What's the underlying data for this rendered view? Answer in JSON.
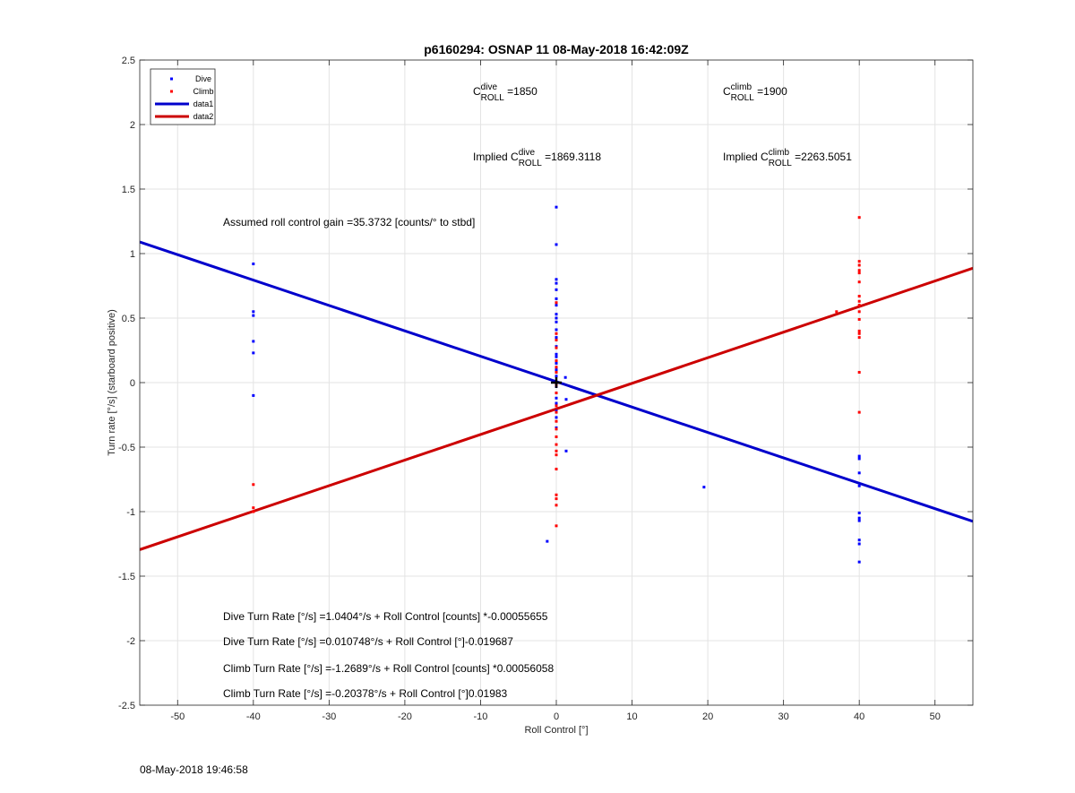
{
  "chart_data": {
    "type": "scatter",
    "title": "p6160294: OSNAP 11 08-May-2018 16:42:09Z",
    "xlabel": "Roll Control [°]",
    "ylabel": "Turn rate [°/s] (starboard positive)",
    "xlim": [
      -55,
      55
    ],
    "ylim": [
      -2.5,
      2.5
    ],
    "xticks": [
      -50,
      -40,
      -30,
      -20,
      -10,
      0,
      10,
      20,
      30,
      40,
      50
    ],
    "yticks": [
      -2.5,
      -2,
      -1.5,
      -1,
      -0.5,
      0,
      0.5,
      1,
      1.5,
      2,
      2.5
    ],
    "grid": true,
    "legend_position": "top-left",
    "series": [
      {
        "name": "Dive",
        "kind": "points",
        "color": "#0000ff",
        "points": [
          [
            -40,
            0.92
          ],
          [
            -40,
            0.55
          ],
          [
            -40,
            0.52
          ],
          [
            -40,
            0.32
          ],
          [
            -40,
            0.23
          ],
          [
            -40,
            -0.1
          ],
          [
            0,
            1.36
          ],
          [
            0,
            1.07
          ],
          [
            0,
            0.8
          ],
          [
            0,
            0.77
          ],
          [
            0,
            0.72
          ],
          [
            0,
            0.65
          ],
          [
            0,
            0.6
          ],
          [
            0,
            0.53
          ],
          [
            0,
            0.5
          ],
          [
            0,
            0.47
          ],
          [
            0,
            0.41
          ],
          [
            0,
            0.35
          ],
          [
            0,
            0.28
          ],
          [
            0,
            0.22
          ],
          [
            0,
            0.2
          ],
          [
            0,
            0.15
          ],
          [
            0,
            0.1
          ],
          [
            0,
            0.05
          ],
          [
            0,
            0.0
          ],
          [
            0,
            -0.03
          ],
          [
            0,
            -0.08
          ],
          [
            0,
            -0.12
          ],
          [
            0,
            -0.16
          ],
          [
            0,
            -0.22
          ],
          [
            0,
            -0.27
          ],
          [
            0,
            -0.35
          ],
          [
            1.2,
            0.04
          ],
          [
            1.3,
            -0.13
          ],
          [
            1.3,
            -0.53
          ],
          [
            -1.2,
            -1.23
          ],
          [
            19.5,
            -0.81
          ],
          [
            40,
            -0.57
          ],
          [
            40,
            -0.59
          ],
          [
            40,
            -0.7
          ],
          [
            40,
            -0.8
          ],
          [
            40,
            -1.01
          ],
          [
            40,
            -1.05
          ],
          [
            40,
            -1.07
          ],
          [
            40,
            -1.22
          ],
          [
            40,
            -1.25
          ],
          [
            40,
            -1.39
          ]
        ]
      },
      {
        "name": "Climb",
        "kind": "points",
        "color": "#ff0000",
        "points": [
          [
            -40,
            -0.79
          ],
          [
            -40,
            -0.97
          ],
          [
            -40,
            -1.0
          ],
          [
            0,
            0.62
          ],
          [
            0,
            0.38
          ],
          [
            0,
            0.33
          ],
          [
            0,
            0.27
          ],
          [
            0,
            0.17
          ],
          [
            0,
            0.12
          ],
          [
            0,
            0.08
          ],
          [
            0,
            -0.02
          ],
          [
            0,
            -0.08
          ],
          [
            0,
            -0.18
          ],
          [
            0,
            -0.23
          ],
          [
            0,
            -0.3
          ],
          [
            0,
            -0.36
          ],
          [
            0,
            -0.42
          ],
          [
            0,
            -0.48
          ],
          [
            0,
            -0.53
          ],
          [
            0,
            -0.56
          ],
          [
            0,
            -0.67
          ],
          [
            0,
            -0.87
          ],
          [
            0,
            -0.9
          ],
          [
            0,
            -0.95
          ],
          [
            0,
            -1.11
          ],
          [
            37,
            0.55
          ],
          [
            40,
            1.28
          ],
          [
            40,
            0.94
          ],
          [
            40,
            0.91
          ],
          [
            40,
            0.87
          ],
          [
            40,
            0.85
          ],
          [
            40,
            0.78
          ],
          [
            40,
            0.67
          ],
          [
            40,
            0.63
          ],
          [
            40,
            0.6
          ],
          [
            40,
            0.55
          ],
          [
            40,
            0.49
          ],
          [
            40,
            0.4
          ],
          [
            40,
            0.38
          ],
          [
            40,
            0.35
          ],
          [
            40,
            0.08
          ],
          [
            40,
            -0.23
          ]
        ]
      },
      {
        "name": "data1",
        "kind": "line",
        "color": "#0000cc",
        "points": [
          [
            -55,
            1.0898
          ],
          [
            55,
            -1.0752
          ]
        ]
      },
      {
        "name": "data2",
        "kind": "line",
        "color": "#cc0000",
        "points": [
          [
            -55,
            -1.2944
          ],
          [
            55,
            0.8869
          ]
        ]
      }
    ],
    "origin_marker": [
      0,
      0
    ],
    "annotations": {
      "c_dive_base": "C",
      "c_dive_sup": "dive",
      "c_dive_sub": "ROLL",
      "c_dive_val": " =1850",
      "c_climb_base": "C",
      "c_climb_sup": "climb",
      "c_climb_sub": "ROLL",
      "c_climb_val": " =1900",
      "implied_dive_prefix": "Implied C",
      "implied_dive_sup": "dive",
      "implied_dive_sub": "ROLL",
      "implied_dive_val": " =1869.3118",
      "implied_climb_prefix": "Implied C",
      "implied_climb_sup": "climb",
      "implied_climb_sub": "ROLL",
      "implied_climb_val": " =2263.5051",
      "gain": "Assumed roll control gain =35.3732 [counts/° to stbd]",
      "eq1": "Dive Turn Rate [°/s] =1.0404°/s + Roll Control [counts] *-0.00055655",
      "eq2": "Dive Turn Rate [°/s] =0.010748°/s + Roll Control [°]-0.019687",
      "eq3": "Climb Turn Rate [°/s] =-1.2689°/s + Roll Control [counts] *0.00056058",
      "eq4": "Climb Turn Rate [°/s] =-0.20378°/s + Roll Control [°]0.01983"
    }
  },
  "footer_timestamp": "08-May-2018 19:46:58"
}
